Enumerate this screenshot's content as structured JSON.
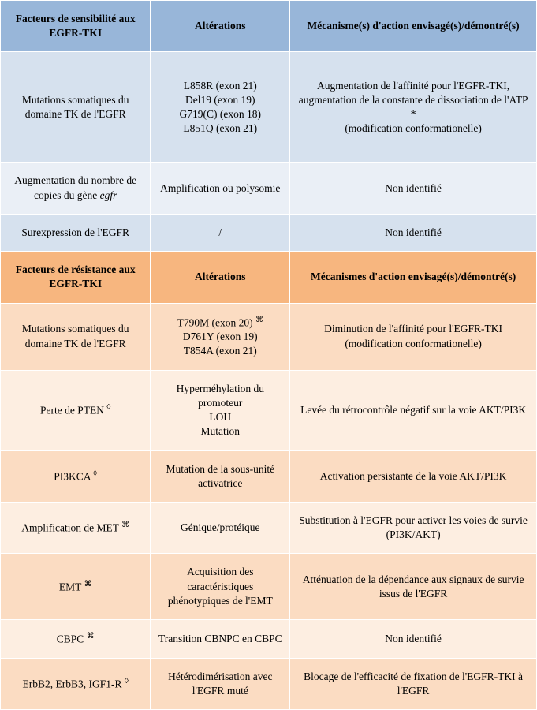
{
  "colors": {
    "header_blue": "#98b6d9",
    "row_blue_dark": "#d6e1ee",
    "row_blue_light": "#eaeff6",
    "header_orange": "#f7b67f",
    "row_orange_dark": "#fbdcc2",
    "row_orange_light": "#fdeee1",
    "border": "#ffffff",
    "text": "#000000"
  },
  "table1": {
    "header": {
      "factor": "Facteurs de sensibilité aux EGFR-TKI",
      "alteration": "Altérations",
      "mechanism": "Mécanisme(s) d'action envisagé(s)/démontré(s)"
    },
    "rows": [
      {
        "factor": "Mutations somatiques du domaine TK de l'EGFR",
        "alteration": "L858R (exon 21)\nDel19 (exon 19)\nG719(C) (exon 18)\nL851Q (exon 21)",
        "mechanism": "Augmentation de l'affinité pour l'EGFR-TKI, augmentation de la constante de dissociation de l'ATP *\n(modification conformationelle)",
        "shade": "dark"
      },
      {
        "factor": "Augmentation du nombre de copies du gène egfr",
        "factor_html": "Augmentation du nombre de copies du gène <i>egfr</i>",
        "alteration": "Amplification ou polysomie",
        "mechanism": "Non identifié",
        "shade": "light"
      },
      {
        "factor": "Surexpression de l'EGFR",
        "alteration": "/",
        "mechanism": "Non identifié",
        "shade": "dark"
      }
    ]
  },
  "table2": {
    "header": {
      "factor": "Facteurs de résistance aux EGFR-TKI",
      "alteration": "Altérations",
      "mechanism": "Mécanismes d'action envisagé(s)/démontré(s)"
    },
    "rows": [
      {
        "factor": "Mutations somatiques du domaine TK de l'EGFR",
        "alteration": "T790M (exon 20) ⌘\nD761Y (exon 19)\nT854A (exon 21)",
        "alteration_html": "T790M (exon 20) <span class='sup'>⌘</span><br>D761Y (exon 19)<br>T854A (exon 21)",
        "mechanism": "Diminution de l'affinité pour l'EGFR-TKI (modification conformationelle)",
        "shade": "dark"
      },
      {
        "factor": "Perte de PTEN ◊",
        "factor_html": "Perte de PTEN <span class='sup'>◊</span>",
        "alteration": "Hyperméhylation du promoteur\nLOH\nMutation",
        "mechanism": "Levée du rétrocontrôle négatif sur la voie AKT/PI3K",
        "shade": "light"
      },
      {
        "factor": "PI3KCA ◊",
        "factor_html": "PI3KCA <span class='sup'>◊</span>",
        "alteration": "Mutation de la sous-unité activatrice",
        "mechanism": "Activation persistante de la voie AKT/PI3K",
        "shade": "dark"
      },
      {
        "factor": "Amplification de MET ⌘",
        "factor_html": "Amplification de MET <span class='sup'>⌘</span>",
        "alteration": "Génique/protéique",
        "mechanism": "Substitution  à l'EGFR pour activer les voies de survie\n(PI3K/AKT)",
        "shade": "light"
      },
      {
        "factor": "EMT ⌘",
        "factor_html": "EMT <span class='sup'>⌘</span>",
        "alteration": "Acquisition des caractéristiques phénotypiques de l'EMT",
        "mechanism": "Atténuation de la dépendance aux signaux de survie issus de l'EGFR",
        "shade": "dark"
      },
      {
        "factor": "CBPC ⌘",
        "factor_html": "CBPC <span class='sup'>⌘</span>",
        "alteration": "Transition CBNPC en CBPC",
        "mechanism": "Non identifié",
        "shade": "light"
      },
      {
        "factor": "ErbB2, ErbB3, IGF1-R ◊",
        "factor_html": "ErbB2, ErbB3, IGF1-R <span class='sup'>◊</span>",
        "alteration": "Hétérodimérisation avec l'EGFR muté",
        "mechanism": "Blocage de l'efficacité de fixation de l'EGFR-TKI à l'EGFR",
        "shade": "dark"
      }
    ]
  }
}
